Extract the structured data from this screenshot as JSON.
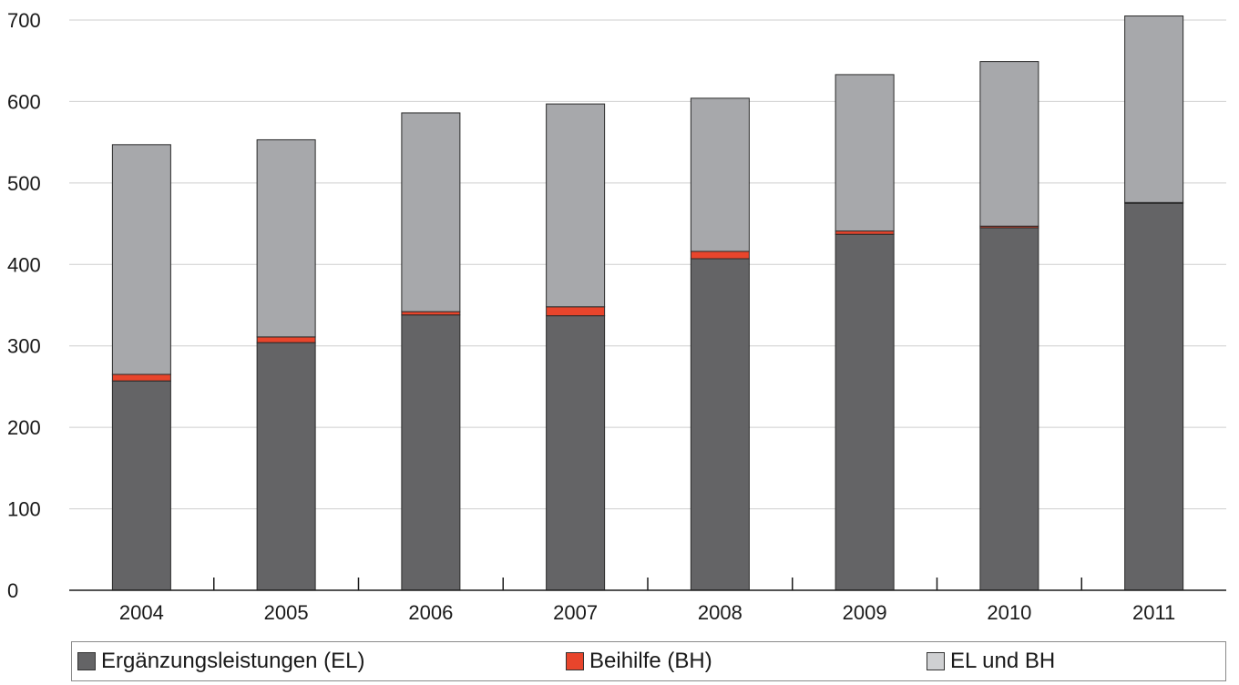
{
  "chart_data": {
    "type": "bar",
    "stacked": true,
    "categories": [
      "2004",
      "2005",
      "2006",
      "2007",
      "2008",
      "2009",
      "2010",
      "2011"
    ],
    "series": [
      {
        "name": "Ergänzungsleistungen (EL)",
        "color": "#646466",
        "values": [
          257,
          304,
          338,
          337,
          407,
          437,
          445,
          475
        ]
      },
      {
        "name": "Beihilfe (BH)",
        "color": "#e8452c",
        "values": [
          8,
          7,
          4,
          11,
          9,
          4,
          2,
          1
        ]
      },
      {
        "name": "EL und BH",
        "color": "#a7a8ab",
        "values": [
          282,
          242,
          244,
          249,
          188,
          192,
          202,
          229
        ]
      }
    ],
    "ylim": [
      0,
      700
    ],
    "yticks": [
      "0",
      "100",
      "200",
      "300",
      "400",
      "500",
      "600",
      "700"
    ],
    "grid": true,
    "legend_position": "bottom"
  }
}
